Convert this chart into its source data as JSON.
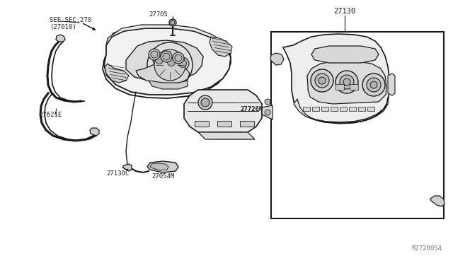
{
  "bg_color": "#ffffff",
  "line_color": "#1a1a1a",
  "gray_color": "#777777",
  "dark_color": "#333333",
  "labels": {
    "see_sec": "SEE SEC.270\n(27010)",
    "27705": "27705",
    "27621E": "27621E",
    "27726N": "27726N",
    "27130C": "27130C",
    "27054M": "27054M",
    "27130": "27130",
    "ref_code": "R2720054"
  },
  "font_size": 6.5,
  "font_size_ref": 6.5,
  "font_size_27130": 7.5
}
